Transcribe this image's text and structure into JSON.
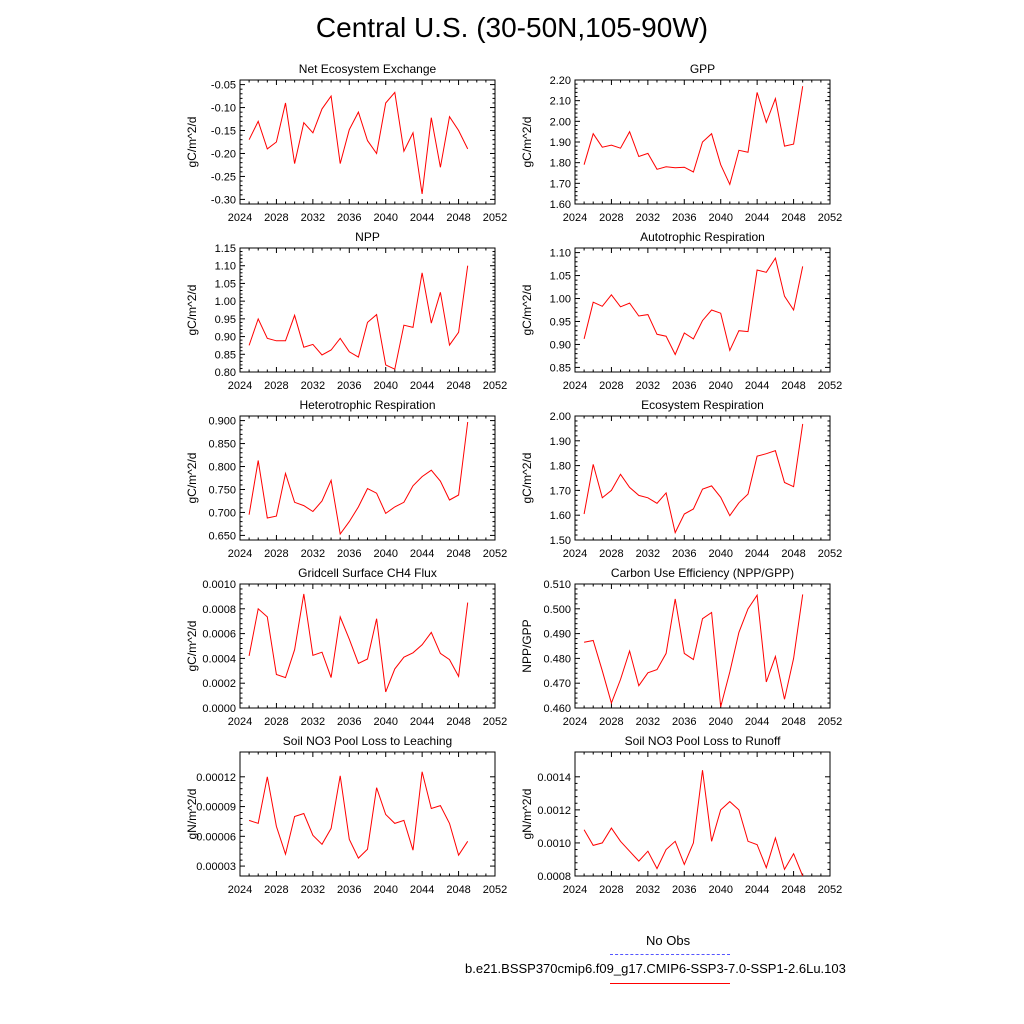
{
  "title": "Central U.S. (30-50N,105-90W)",
  "line_color": "#ff0000",
  "obs_color": "#5555ff",
  "legend": {
    "obs_label": "No Obs",
    "model_label": "b.e21.BSSP370cmip6.f09_g17.CMIP6-SSP3-7.0-SSP1-2.6Lu.103"
  },
  "chart_data": [
    {
      "type": "line",
      "title": "Net Ecosystem Exchange",
      "ylabel": "gC/m^2/d",
      "xlabel": "",
      "xlim": [
        2024,
        2052
      ],
      "ylim": [
        -0.31,
        -0.04
      ],
      "xticks": [
        "2024",
        "2028",
        "2032",
        "2036",
        "2040",
        "2044",
        "2048",
        "2052"
      ],
      "yticks": [
        "-0.05",
        "-0.10",
        "-0.15",
        "-0.20",
        "-0.25",
        "-0.30"
      ],
      "ytick_values": [
        -0.05,
        -0.1,
        -0.15,
        -0.2,
        -0.25,
        -0.3
      ],
      "x": [
        2025,
        2026,
        2027,
        2028,
        2029,
        2030,
        2031,
        2032,
        2033,
        2034,
        2035,
        2036,
        2037,
        2038,
        2039,
        2040,
        2041,
        2042,
        2043,
        2044,
        2045,
        2046,
        2047,
        2048,
        2049
      ],
      "y": [
        -0.17,
        -0.13,
        -0.19,
        -0.175,
        -0.09,
        -0.222,
        -0.133,
        -0.155,
        -0.103,
        -0.075,
        -0.222,
        -0.148,
        -0.11,
        -0.172,
        -0.2,
        -0.09,
        -0.067,
        -0.195,
        -0.155,
        -0.288,
        -0.122,
        -0.23,
        -0.12,
        -0.15,
        -0.19
      ]
    },
    {
      "type": "line",
      "title": "GPP",
      "ylabel": "gC/m^2/d",
      "xlabel": "",
      "xlim": [
        2024,
        2052
      ],
      "ylim": [
        1.6,
        2.2
      ],
      "xticks": [
        "2024",
        "2028",
        "2032",
        "2036",
        "2040",
        "2044",
        "2048",
        "2052"
      ],
      "yticks": [
        "1.60",
        "1.70",
        "1.80",
        "1.90",
        "2.00",
        "2.10",
        "2.20"
      ],
      "ytick_values": [
        1.6,
        1.7,
        1.8,
        1.9,
        2.0,
        2.1,
        2.2
      ],
      "x": [
        2025,
        2026,
        2027,
        2028,
        2029,
        2030,
        2031,
        2032,
        2033,
        2034,
        2035,
        2036,
        2037,
        2038,
        2039,
        2040,
        2041,
        2042,
        2043,
        2044,
        2045,
        2046,
        2047,
        2048,
        2049
      ],
      "y": [
        1.79,
        1.94,
        1.875,
        1.885,
        1.87,
        1.95,
        1.83,
        1.845,
        1.768,
        1.78,
        1.775,
        1.778,
        1.755,
        1.9,
        1.94,
        1.79,
        1.695,
        1.86,
        1.85,
        2.14,
        1.995,
        2.11,
        1.88,
        1.89,
        2.17
      ]
    },
    {
      "type": "line",
      "title": "NPP",
      "ylabel": "gC/m^2/d",
      "xlabel": "",
      "xlim": [
        2024,
        2052
      ],
      "ylim": [
        0.8,
        1.15
      ],
      "xticks": [
        "2024",
        "2028",
        "2032",
        "2036",
        "2040",
        "2044",
        "2048",
        "2052"
      ],
      "yticks": [
        "0.80",
        "0.85",
        "0.90",
        "0.95",
        "1.00",
        "1.05",
        "1.10",
        "1.15"
      ],
      "ytick_values": [
        0.8,
        0.85,
        0.9,
        0.95,
        1.0,
        1.05,
        1.1,
        1.15
      ],
      "x": [
        2025,
        2026,
        2027,
        2028,
        2029,
        2030,
        2031,
        2032,
        2033,
        2034,
        2035,
        2036,
        2037,
        2038,
        2039,
        2040,
        2041,
        2042,
        2043,
        2044,
        2045,
        2046,
        2047,
        2048,
        2049
      ],
      "y": [
        0.875,
        0.95,
        0.895,
        0.888,
        0.888,
        0.96,
        0.87,
        0.878,
        0.848,
        0.862,
        0.895,
        0.857,
        0.842,
        0.94,
        0.962,
        0.82,
        0.808,
        0.932,
        0.926,
        1.08,
        0.938,
        1.025,
        0.876,
        0.912,
        1.1
      ]
    },
    {
      "type": "line",
      "title": "Autotrophic Respiration",
      "ylabel": "gC/m^2/d",
      "xlabel": "",
      "xlim": [
        2024,
        2052
      ],
      "ylim": [
        0.84,
        1.11
      ],
      "xticks": [
        "2024",
        "2028",
        "2032",
        "2036",
        "2040",
        "2044",
        "2048",
        "2052"
      ],
      "yticks": [
        "0.85",
        "0.90",
        "0.95",
        "1.00",
        "1.05",
        "1.10"
      ],
      "ytick_values": [
        0.85,
        0.9,
        0.95,
        1.0,
        1.05,
        1.1
      ],
      "x": [
        2025,
        2026,
        2027,
        2028,
        2029,
        2030,
        2031,
        2032,
        2033,
        2034,
        2035,
        2036,
        2037,
        2038,
        2039,
        2040,
        2041,
        2042,
        2043,
        2044,
        2045,
        2046,
        2047,
        2048,
        2049
      ],
      "y": [
        0.912,
        0.992,
        0.983,
        1.008,
        0.982,
        0.99,
        0.962,
        0.965,
        0.922,
        0.918,
        0.878,
        0.925,
        0.912,
        0.952,
        0.975,
        0.968,
        0.887,
        0.93,
        0.928,
        1.062,
        1.057,
        1.088,
        1.005,
        0.975,
        1.07
      ]
    },
    {
      "type": "line",
      "title": "Heterotrophic Respiration",
      "ylabel": "gC/m^2/d",
      "xlabel": "",
      "xlim": [
        2024,
        2052
      ],
      "ylim": [
        0.64,
        0.91
      ],
      "xticks": [
        "2024",
        "2028",
        "2032",
        "2036",
        "2040",
        "2044",
        "2048",
        "2052"
      ],
      "yticks": [
        "0.650",
        "0.700",
        "0.750",
        "0.800",
        "0.850",
        "0.900"
      ],
      "ytick_values": [
        0.65,
        0.7,
        0.75,
        0.8,
        0.85,
        0.9
      ],
      "x": [
        2025,
        2026,
        2027,
        2028,
        2029,
        2030,
        2031,
        2032,
        2033,
        2034,
        2035,
        2036,
        2037,
        2038,
        2039,
        2040,
        2041,
        2042,
        2043,
        2044,
        2045,
        2046,
        2047,
        2048,
        2049
      ],
      "y": [
        0.695,
        0.813,
        0.688,
        0.692,
        0.785,
        0.722,
        0.715,
        0.702,
        0.725,
        0.77,
        0.653,
        0.68,
        0.712,
        0.752,
        0.742,
        0.698,
        0.712,
        0.722,
        0.758,
        0.778,
        0.792,
        0.768,
        0.727,
        0.738,
        0.897
      ]
    },
    {
      "type": "line",
      "title": "Ecosystem Respiration",
      "ylabel": "gC/m^2/d",
      "xlabel": "",
      "xlim": [
        2024,
        2052
      ],
      "ylim": [
        1.5,
        2.0
      ],
      "xticks": [
        "2024",
        "2028",
        "2032",
        "2036",
        "2040",
        "2044",
        "2048",
        "2052"
      ],
      "yticks": [
        "1.50",
        "1.60",
        "1.70",
        "1.80",
        "1.90",
        "2.00"
      ],
      "ytick_values": [
        1.5,
        1.6,
        1.7,
        1.8,
        1.9,
        2.0
      ],
      "x": [
        2025,
        2026,
        2027,
        2028,
        2029,
        2030,
        2031,
        2032,
        2033,
        2034,
        2035,
        2036,
        2037,
        2038,
        2039,
        2040,
        2041,
        2042,
        2043,
        2044,
        2045,
        2046,
        2047,
        2048,
        2049
      ],
      "y": [
        1.605,
        1.805,
        1.67,
        1.7,
        1.765,
        1.712,
        1.68,
        1.67,
        1.648,
        1.69,
        1.53,
        1.605,
        1.625,
        1.705,
        1.718,
        1.672,
        1.598,
        1.65,
        1.685,
        1.838,
        1.848,
        1.86,
        1.732,
        1.715,
        1.968
      ]
    },
    {
      "type": "line",
      "title": "Gridcell Surface CH4 Flux",
      "ylabel": "gC/m^2/d",
      "xlabel": "",
      "xlim": [
        2024,
        2052
      ],
      "ylim": [
        0.0,
        0.001
      ],
      "xticks": [
        "2024",
        "2028",
        "2032",
        "2036",
        "2040",
        "2044",
        "2048",
        "2052"
      ],
      "yticks": [
        "0.0000",
        "0.0002",
        "0.0004",
        "0.0006",
        "0.0008",
        "0.0010"
      ],
      "ytick_values": [
        0.0,
        0.0002,
        0.0004,
        0.0006,
        0.0008,
        0.001
      ],
      "x": [
        2025,
        2026,
        2027,
        2028,
        2029,
        2030,
        2031,
        2032,
        2033,
        2034,
        2035,
        2036,
        2037,
        2038,
        2039,
        2040,
        2041,
        2042,
        2043,
        2044,
        2045,
        2046,
        2047,
        2048,
        2049
      ],
      "y": [
        0.00042,
        0.0008,
        0.000735,
        0.00027,
        0.000245,
        0.00047,
        0.00092,
        0.000425,
        0.00045,
        0.000245,
        0.000735,
        0.000555,
        0.00036,
        0.000395,
        0.00072,
        0.00013,
        0.000315,
        0.00041,
        0.000445,
        0.00051,
        0.00061,
        0.00044,
        0.00039,
        0.000255,
        0.00085
      ]
    },
    {
      "type": "line",
      "title": "Carbon Use Efficiency (NPP/GPP)",
      "ylabel": "NPP/GPP",
      "xlabel": "",
      "xlim": [
        2024,
        2052
      ],
      "ylim": [
        0.46,
        0.51
      ],
      "xticks": [
        "2024",
        "2028",
        "2032",
        "2036",
        "2040",
        "2044",
        "2048",
        "2052"
      ],
      "yticks": [
        "0.460",
        "0.470",
        "0.480",
        "0.490",
        "0.500",
        "0.510"
      ],
      "ytick_values": [
        0.46,
        0.47,
        0.48,
        0.49,
        0.5,
        0.51
      ],
      "x": [
        2025,
        2026,
        2027,
        2028,
        2029,
        2030,
        2031,
        2032,
        2033,
        2034,
        2035,
        2036,
        2037,
        2038,
        2039,
        2040,
        2041,
        2042,
        2043,
        2044,
        2045,
        2046,
        2047,
        2048,
        2049
      ],
      "y": [
        0.4865,
        0.4872,
        0.475,
        0.462,
        0.4715,
        0.483,
        0.469,
        0.4742,
        0.4755,
        0.482,
        0.504,
        0.482,
        0.4795,
        0.496,
        0.4985,
        0.4605,
        0.4745,
        0.4905,
        0.5,
        0.5055,
        0.4705,
        0.4808,
        0.4635,
        0.48,
        0.5058
      ]
    },
    {
      "type": "line",
      "title": "Soil NO3 Pool Loss to Leaching",
      "ylabel": "gN/m^2/d",
      "xlabel": "",
      "xlim": [
        2024,
        2052
      ],
      "ylim": [
        2e-05,
        0.000145
      ],
      "xticks": [
        "2024",
        "2028",
        "2032",
        "2036",
        "2040",
        "2044",
        "2048",
        "2052"
      ],
      "yticks": [
        "0.00003",
        "0.00006",
        "0.00009",
        "0.00012"
      ],
      "ytick_values": [
        3e-05,
        6e-05,
        9e-05,
        0.00012
      ],
      "x": [
        2025,
        2026,
        2027,
        2028,
        2029,
        2030,
        2031,
        2032,
        2033,
        2034,
        2035,
        2036,
        2037,
        2038,
        2039,
        2040,
        2041,
        2042,
        2043,
        2044,
        2045,
        2046,
        2047,
        2048,
        2049
      ],
      "y": [
        7.6e-05,
        7.3e-05,
        0.00012,
        7e-05,
        4.2e-05,
        8e-05,
        8.3e-05,
        6.1e-05,
        5.2e-05,
        6.8e-05,
        0.000121,
        5.7e-05,
        3.8e-05,
        4.7e-05,
        0.000109,
        8.2e-05,
        7.3e-05,
        7.6e-05,
        4.6e-05,
        0.000125,
        8.8e-05,
        9.1e-05,
        7.3e-05,
        4.1e-05,
        5.5e-05
      ]
    },
    {
      "type": "line",
      "title": "Soil NO3 Pool Loss to Runoff",
      "ylabel": "gN/m^2/d",
      "xlabel": "",
      "xlim": [
        2024,
        2052
      ],
      "ylim": [
        0.0008,
        0.00155
      ],
      "xticks": [
        "2024",
        "2028",
        "2032",
        "2036",
        "2040",
        "2044",
        "2048",
        "2052"
      ],
      "yticks": [
        "0.0008",
        "0.0010",
        "0.0012",
        "0.0014"
      ],
      "ytick_values": [
        0.0008,
        0.001,
        0.0012,
        0.0014
      ],
      "x": [
        2025,
        2026,
        2027,
        2028,
        2029,
        2030,
        2031,
        2032,
        2033,
        2034,
        2035,
        2036,
        2037,
        2038,
        2039,
        2040,
        2041,
        2042,
        2043,
        2044,
        2045,
        2046,
        2047,
        2048,
        2049
      ],
      "y": [
        0.00108,
        0.000985,
        0.001,
        0.00109,
        0.00101,
        0.00095,
        0.00089,
        0.00095,
        0.000845,
        0.00096,
        0.00101,
        0.00087,
        0.001,
        0.00144,
        0.00101,
        0.0012,
        0.00125,
        0.0012,
        0.00101,
        0.00099,
        0.00085,
        0.00103,
        0.00084,
        0.000935,
        0.0008
      ]
    }
  ]
}
